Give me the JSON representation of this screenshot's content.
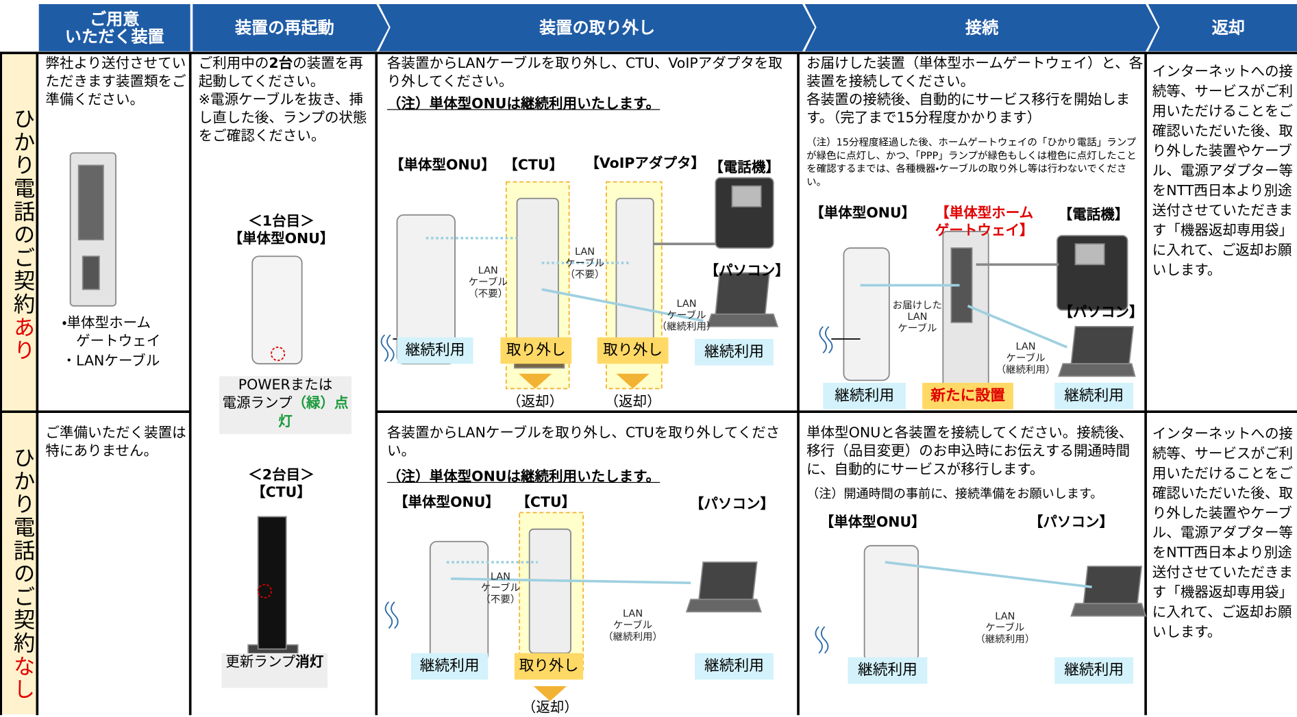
{
  "header": {
    "columns": [
      "ご用意\nいただく装置",
      "装置の再起動",
      "装置の取り外し",
      "接続",
      "返却"
    ]
  },
  "restart": {
    "before": "ご利用中の",
    "bold": "2台",
    "after": "の装置を再起動してください。\n※電源ケーブルを抜き、挿し直した後、ランプの状態をご確認ください。",
    "units": [
      {
        "title": "＜1台目＞\n【単体型ONU】",
        "lamp": "POWERまたは\n電源ランプ",
        "status": "（緑）点灯"
      },
      {
        "title": "＜2台目＞\n【CTU】",
        "lamp": "更新ランプ",
        "status": "消灯"
      }
    ]
  },
  "rows": [
    {
      "label": "ひかり電話のご契約",
      "label_emphasis": "あり",
      "prepare": {
        "text": "弊社より送付させていただきます装置類をご準備ください。",
        "items": [
          "・単体型ホーム\n　ゲートウェイ",
          "・LANケーブル"
        ]
      },
      "removal": {
        "text": "各装置からLANケーブルを取り外し、CTU、VoIPアダプタを取り外してください。",
        "note": "（注）単体型ONUは継続利用いたします。",
        "devices": [
          "【単体型ONU】",
          "【CTU】",
          "【VoIPアダプタ】",
          "【電話機】",
          "【パソコン】"
        ],
        "cables": [
          "LAN\nケーブル\n（不要）",
          "LAN\nケーブル\n（不要）",
          "LAN\nケーブル\n（継続利用）"
        ],
        "statuses": [
          "継続利用",
          "取り外し",
          "取り外し",
          "継続利用"
        ],
        "returns": [
          "（返却）",
          "（返却）"
        ]
      },
      "connect": {
        "text": "お届けした装置（単体型ホームゲートウェイ）と、各装置を接続してください。\n各装置の接続後、自動的にサービス移行を開始します。（完了まで15分程度かかります）",
        "note": "（注）15分程度経過した後、ホームゲートウェイの「ひかり電話」ランプが緑色に点灯し、かつ、「PPP」ランプが緑色もしくは橙色に点灯したことを確認するまでは、各種機器・ケーブルの取り外し等は行わないでください。",
        "devices": [
          "【単体型ONU】",
          "【単体型ホーム\nゲートウェイ】",
          "【電話機】",
          "【パソコン】"
        ],
        "cables": [
          "お届けした\nLAN\nケーブル",
          "LAN\nケーブル\n（継続利用）"
        ],
        "statuses": [
          "継続利用",
          "新たに設置",
          "継続利用"
        ]
      },
      "return": "インターネットへの接続等、サービスがご利用いただけることをご確認いただいた後、取り外した装置やケーブル、電源アダプター等をNTT西日本より別途送付させていただきます「機器返却専用袋」に入れて、ご返却お願いします。"
    },
    {
      "label": "ひかり電話のご契約",
      "label_emphasis": "なし",
      "prepare": {
        "text": "ご準備いただく装置は特にありません。"
      },
      "removal": {
        "text": "各装置からLANケーブルを取り外し、CTUを取り外してください。",
        "note": "（注）単体型ONUは継続利用いたします。",
        "devices": [
          "【単体型ONU】",
          "【CTU】",
          "【パソコン】"
        ],
        "cables": [
          "LAN\nケーブル\n（不要）",
          "LAN\nケーブル\n（継続利用）"
        ],
        "statuses": [
          "継続利用",
          "取り外し",
          "継続利用"
        ],
        "returns": [
          "（返却）"
        ]
      },
      "connect": {
        "text": "単体型ONUと各装置を接続してください。接続後、移行（品目変更）のお申込時にお伝えする開通時間に、自動的にサービスが移行します。",
        "note": "（注）開通時間の事前に、接続準備をお願いします。",
        "devices": [
          "【単体型ONU】",
          "【パソコン】"
        ],
        "cables": [
          "LAN\nケーブル\n（継続利用）"
        ],
        "statuses": [
          "継続利用",
          "継続利用"
        ]
      },
      "return": "インターネットへの接続等、サービスがご利用いただけることをご確認いただいた後、取り外した装置やケーブル、電源アダプター等をNTT西日本より別途送付させていただきます「機器返却専用袋」に入れて、ご返却お願いします。"
    }
  ]
}
